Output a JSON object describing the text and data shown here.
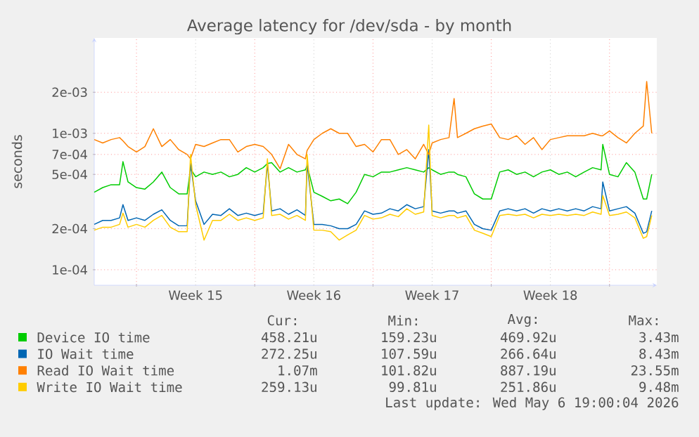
{
  "chart_data": {
    "type": "line",
    "title": "Average latency for /dev/sda - by month",
    "ylabel": "seconds",
    "log": "y",
    "grid": true,
    "legend": "bottom",
    "xlim": [
      "2026-04-03T12:00",
      "2026-05-06T19:12"
    ],
    "ylim": [
      7.7e-05,
      0.005
    ],
    "xticks": [
      {
        "value": "2026-04-06",
        "label": null
      },
      {
        "value": "2026-04-09T12:00",
        "label": "Week 15"
      },
      {
        "value": "2026-04-13",
        "label": null
      },
      {
        "value": "2026-04-16T12:00",
        "label": "Week 16"
      },
      {
        "value": "2026-04-20",
        "label": null
      },
      {
        "value": "2026-04-23T12:00",
        "label": "Week 17"
      },
      {
        "value": "2026-04-27",
        "label": null
      },
      {
        "value": "2026-04-30T12:00",
        "label": "Week 18"
      },
      {
        "value": "2026-05-04",
        "label": null
      }
    ],
    "yticks": [
      {
        "value": 0.0001,
        "label": "1e-04"
      },
      {
        "value": 0.0002,
        "label": "2e-04"
      },
      {
        "value": 0.0005,
        "label": "5e-04"
      },
      {
        "value": 0.0007,
        "label": "7e-04"
      },
      {
        "value": 0.001,
        "label": "1e-03"
      },
      {
        "value": 0.002,
        "label": "2e-03"
      }
    ],
    "x": [
      "2026-04-03T12:00",
      "2026-04-04T00:00",
      "2026-04-04T12:00",
      "2026-04-05T00:00",
      "2026-04-05T04:48",
      "2026-04-05T12:00",
      "2026-04-06T00:00",
      "2026-04-06T12:00",
      "2026-04-07T00:00",
      "2026-04-07T12:00",
      "2026-04-08T00:00",
      "2026-04-08T12:00",
      "2026-04-09T00:00",
      "2026-04-09T04:48",
      "2026-04-09T12:00",
      "2026-04-10T00:00",
      "2026-04-10T12:00",
      "2026-04-11T00:00",
      "2026-04-11T12:00",
      "2026-04-12T00:00",
      "2026-04-12T12:00",
      "2026-04-13T00:00",
      "2026-04-13T12:00",
      "2026-04-13T18:00",
      "2026-04-14T00:00",
      "2026-04-14T12:00",
      "2026-04-15T00:00",
      "2026-04-15T12:00",
      "2026-04-16T00:00",
      "2026-04-16T02:24",
      "2026-04-16T12:00",
      "2026-04-17T00:00",
      "2026-04-17T12:00",
      "2026-04-18T00:00",
      "2026-04-18T12:00",
      "2026-04-19T00:00",
      "2026-04-19T12:00",
      "2026-04-20T00:00",
      "2026-04-20T12:00",
      "2026-04-21T00:00",
      "2026-04-21T12:00",
      "2026-04-22T00:00",
      "2026-04-22T12:00",
      "2026-04-23T00:00",
      "2026-04-23T07:12",
      "2026-04-23T12:00",
      "2026-04-24T00:00",
      "2026-04-24T12:00",
      "2026-04-24T19:12",
      "2026-04-25T00:00",
      "2026-04-25T12:00",
      "2026-04-26T00:00",
      "2026-04-26T12:00",
      "2026-04-27T00:00",
      "2026-04-27T12:00",
      "2026-04-28T00:00",
      "2026-04-28T12:00",
      "2026-04-29T00:00",
      "2026-04-29T12:00",
      "2026-04-30T00:00",
      "2026-04-30T12:00",
      "2026-05-01T00:00",
      "2026-05-01T12:00",
      "2026-05-02T00:00",
      "2026-05-02T12:00",
      "2026-05-03T00:00",
      "2026-05-03T12:00",
      "2026-05-03T14:24",
      "2026-05-04T00:00",
      "2026-05-04T12:00",
      "2026-05-05T00:00",
      "2026-05-05T12:00",
      "2026-05-06T00:00",
      "2026-05-06T04:48",
      "2026-05-06T12:00"
    ],
    "series": [
      {
        "name": "Device IO time",
        "color": "#00cc00",
        "values": [
          0.00037,
          0.0004,
          0.00042,
          0.00042,
          0.00062,
          0.00044,
          0.0004,
          0.00039,
          0.00044,
          0.00052,
          0.0004,
          0.00036,
          0.00036,
          0.00055,
          0.00048,
          0.00052,
          0.0005,
          0.00052,
          0.00048,
          0.0005,
          0.00056,
          0.00052,
          0.00056,
          0.0006,
          0.00061,
          0.00052,
          0.00056,
          0.00052,
          0.00054,
          0.00058,
          0.00037,
          0.000345,
          0.00032,
          0.00033,
          0.000305,
          0.00037,
          0.0005,
          0.00048,
          0.00052,
          0.00052,
          0.00054,
          0.00056,
          0.00054,
          0.00052,
          0.00056,
          0.00054,
          0.0005,
          0.00052,
          0.00052,
          0.0005,
          0.00048,
          0.00036,
          0.00033,
          0.00033,
          0.00052,
          0.00054,
          0.0005,
          0.00052,
          0.00048,
          0.00052,
          0.00054,
          0.0005,
          0.00052,
          0.00048,
          0.00052,
          0.00056,
          0.00054,
          0.00083,
          0.0005,
          0.00048,
          0.00061,
          0.00052,
          0.00033,
          0.00033,
          0.0005
        ]
      },
      {
        "name": "IO Wait time",
        "color": "#0066b3",
        "values": [
          0.000215,
          0.00023,
          0.00023,
          0.00024,
          0.0003,
          0.00023,
          0.00024,
          0.00023,
          0.000255,
          0.000275,
          0.00023,
          0.00021,
          0.00021,
          0.0006,
          0.00032,
          0.000215,
          0.000255,
          0.00025,
          0.00028,
          0.00025,
          0.00026,
          0.00025,
          0.00026,
          0.0006,
          0.00027,
          0.00028,
          0.000255,
          0.000275,
          0.00025,
          0.0006,
          0.000215,
          0.000215,
          0.00021,
          0.0002,
          0.0002,
          0.000215,
          0.00027,
          0.000255,
          0.00026,
          0.00028,
          0.00027,
          0.0003,
          0.00028,
          0.00029,
          0.00076,
          0.00027,
          0.00026,
          0.00027,
          0.00027,
          0.00026,
          0.00027,
          0.000215,
          0.0002,
          0.000195,
          0.00027,
          0.00028,
          0.00027,
          0.00028,
          0.00026,
          0.00028,
          0.00027,
          0.00028,
          0.00027,
          0.00028,
          0.00027,
          0.00029,
          0.00028,
          0.00044,
          0.00027,
          0.00028,
          0.00029,
          0.00026,
          0.000185,
          0.00019,
          0.00027
        ]
      },
      {
        "name": "Read IO Wait time",
        "color": "#ff8000",
        "values": [
          0.0009,
          0.00085,
          0.0009,
          0.00093,
          0.00088,
          0.0008,
          0.00073,
          0.0008,
          0.00108,
          0.0008,
          0.0009,
          0.00076,
          0.0007,
          0.00065,
          0.00083,
          0.0008,
          0.00085,
          0.0009,
          0.0009,
          0.00073,
          0.0008,
          0.00083,
          0.0008,
          0.00075,
          0.0007,
          0.00055,
          0.00083,
          0.0007,
          0.00065,
          0.00075,
          0.0009,
          0.001,
          0.00108,
          0.001,
          0.001,
          0.0008,
          0.00083,
          0.00073,
          0.0009,
          0.0009,
          0.0007,
          0.00076,
          0.00065,
          0.00083,
          0.0007,
          0.00085,
          0.0009,
          0.00093,
          0.0018,
          0.00093,
          0.001,
          0.00108,
          0.00113,
          0.00117,
          0.00093,
          0.0009,
          0.00096,
          0.00083,
          0.00093,
          0.00076,
          0.0009,
          0.00093,
          0.00096,
          0.00096,
          0.00096,
          0.001,
          0.00096,
          0.00096,
          0.00104,
          0.00093,
          0.00085,
          0.001,
          0.00113,
          0.0024,
          0.001
        ]
      },
      {
        "name": "Write IO Wait time",
        "color": "#ffcc00",
        "values": [
          0.000195,
          0.000205,
          0.000205,
          0.000215,
          0.00026,
          0.000205,
          0.000215,
          0.000205,
          0.00023,
          0.00025,
          0.000205,
          0.00019,
          0.00019,
          0.0007,
          0.0003,
          0.000165,
          0.00023,
          0.00023,
          0.000255,
          0.00023,
          0.00024,
          0.00023,
          0.00024,
          0.00065,
          0.00025,
          0.000255,
          0.000235,
          0.00025,
          0.00023,
          0.0007,
          0.000195,
          0.000195,
          0.00019,
          0.000165,
          0.00018,
          0.000195,
          0.00025,
          0.000235,
          0.00024,
          0.000255,
          0.000245,
          0.00028,
          0.000255,
          0.000265,
          0.00115,
          0.00025,
          0.00024,
          0.00025,
          0.00025,
          0.00024,
          0.00025,
          0.000195,
          0.000185,
          0.000175,
          0.00025,
          0.000255,
          0.00025,
          0.000255,
          0.00024,
          0.000255,
          0.00025,
          0.000255,
          0.00025,
          0.000255,
          0.00025,
          0.000265,
          0.000255,
          0.00035,
          0.00025,
          0.000255,
          0.000265,
          0.00024,
          0.00017,
          0.000175,
          0.00025
        ]
      }
    ],
    "annotations": [
      "Cur:",
      "Min:",
      "Avg:",
      "Max:",
      "458.21u",
      "159.23u",
      "469.92u",
      "3.43m",
      "272.25u",
      "107.59u",
      "266.64u",
      "8.43m",
      "1.07m",
      "101.82u",
      "887.19u",
      "23.55m",
      "259.13u",
      "99.81u",
      "251.86u",
      "9.48m",
      "Last update: Wed May  6 19:00:04 2026"
    ]
  }
}
